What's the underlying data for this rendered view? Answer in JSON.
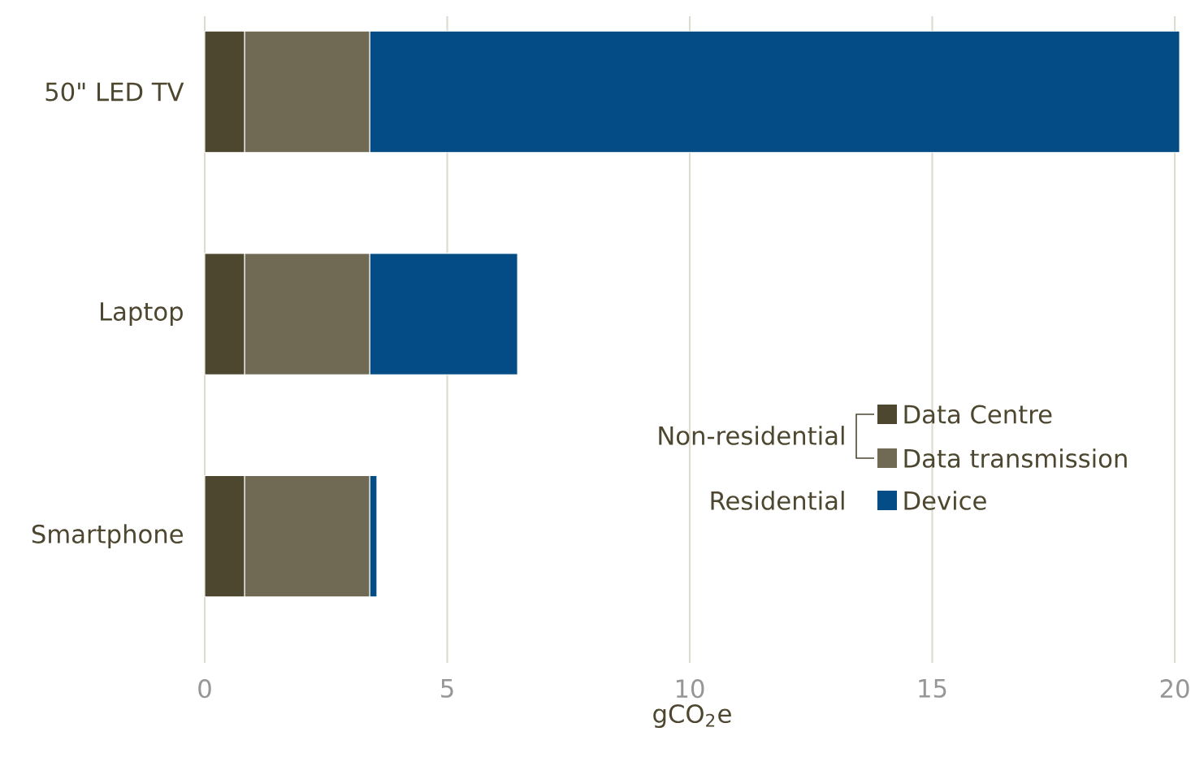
{
  "chart_data": {
    "type": "bar",
    "orientation": "horizontal",
    "stacked": true,
    "xlabel": "gCO$_{2}$e",
    "categories": [
      "50\" LED TV",
      "Laptop",
      "Smartphone"
    ],
    "series": [
      {
        "name": "Data Centre",
        "color": "#4d4730",
        "values": [
          0.82,
          0.82,
          0.82
        ]
      },
      {
        "name": "Data transmission",
        "color": "#706a55",
        "values": [
          2.58,
          2.58,
          2.58
        ]
      },
      {
        "name": "Device",
        "color": "#034c85",
        "values": [
          16.7,
          3.05,
          0.15
        ]
      }
    ],
    "xlim": [
      0,
      20.1
    ],
    "xticks": [
      0,
      5,
      10,
      15,
      20
    ],
    "grid": "x",
    "legend": "right",
    "annotations": [
      "Non-residential",
      "Residential"
    ]
  }
}
